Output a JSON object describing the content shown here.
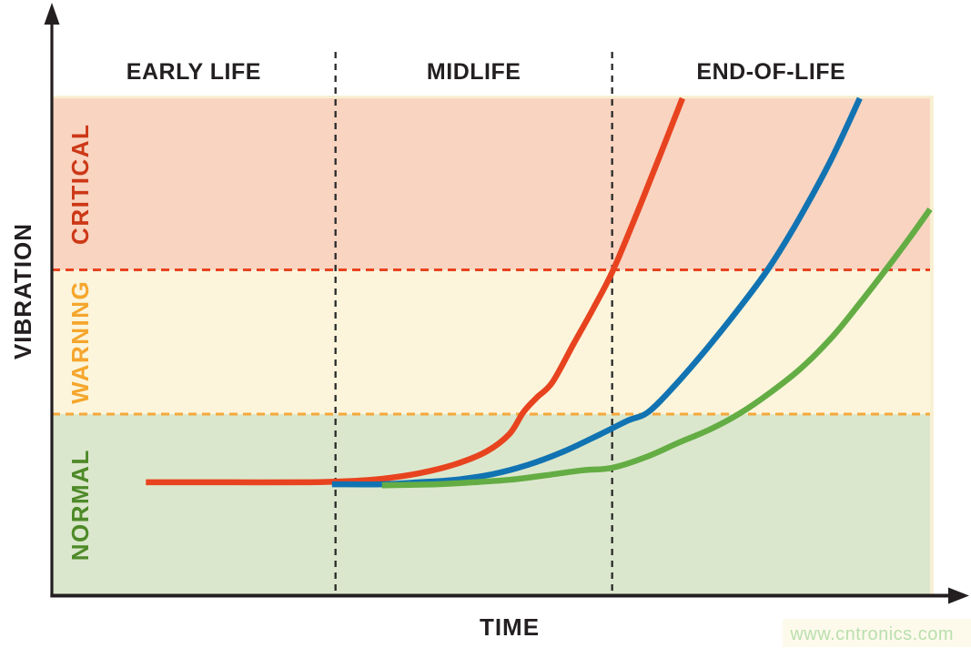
{
  "watermark": "www.cntronics.com",
  "colors": {
    "axis": "#231f20",
    "phase_boundary_line": "#2a2a2a",
    "plot_backing": "#f8f0d4",
    "watermark_strip": "#fdfaec",
    "curve_red": "#e8431f",
    "curve_blue": "#1173b2",
    "curve_green": "#64ad44"
  },
  "chart_data": {
    "type": "line",
    "title": "",
    "xlabel": "TIME",
    "ylabel": "VIBRATION",
    "x_axis": {
      "min": 0,
      "max": 100,
      "ticks": "none",
      "note": "relative machine lifetime, unlabeled axis"
    },
    "y_axis": {
      "min": 0,
      "max": 100,
      "ticks": "none",
      "note": "relative vibration amplitude, unlabeled axis"
    },
    "grid": false,
    "legend": "none",
    "phases": [
      {
        "label": "EARLY LIFE",
        "t_start": 0,
        "t_end": 32.3
      },
      {
        "label": "MIDLIFE",
        "t_start": 32.3,
        "t_end": 63.8
      },
      {
        "label": "END-OF-LIFE",
        "t_start": 63.8,
        "t_end": 100
      }
    ],
    "zones": [
      {
        "label": "NORMAL",
        "vib_min": 0,
        "vib_max": 36.5,
        "fill": "#dbe7cd",
        "text_color": "#4e8a28"
      },
      {
        "label": "WARNING",
        "vib_min": 36.5,
        "vib_max": 65.5,
        "fill": "#fcf5dc",
        "text_color": "#f5a62d"
      },
      {
        "label": "CRITICAL",
        "vib_min": 65.5,
        "vib_max": 100,
        "fill": "#f9d4c1",
        "text_color": "#cc3817"
      }
    ],
    "threshold_lines": [
      {
        "name": "warning-threshold",
        "vib": 36.5,
        "color": "#f6a83a"
      },
      {
        "name": "critical-threshold",
        "vib": 65.5,
        "color": "#e8431f"
      }
    ],
    "series": [
      {
        "name": "fast-degradation-curve",
        "color": "#e8431f",
        "points": [
          [
            10.7,
            22.8
          ],
          [
            20.0,
            22.8
          ],
          [
            29.3,
            22.8
          ],
          [
            33.5,
            23.0
          ],
          [
            37.6,
            23.5
          ],
          [
            41.8,
            24.6
          ],
          [
            45.9,
            26.4
          ],
          [
            49.5,
            29.0
          ],
          [
            52.1,
            32.5
          ],
          [
            53.7,
            36.9
          ],
          [
            55.2,
            39.8
          ],
          [
            57.0,
            42.9
          ],
          [
            59.4,
            50.6
          ],
          [
            61.7,
            57.9
          ],
          [
            63.9,
            65.4
          ],
          [
            66.6,
            76.8
          ],
          [
            69.2,
            88.3
          ],
          [
            71.8,
            100
          ]
        ]
      },
      {
        "name": "moderate-degradation-curve",
        "color": "#1173b2",
        "points": [
          [
            31.9,
            22.4
          ],
          [
            37.6,
            22.4
          ],
          [
            41.8,
            22.8
          ],
          [
            45.9,
            23.3
          ],
          [
            50.1,
            24.4
          ],
          [
            54.2,
            26.3
          ],
          [
            58.3,
            29.0
          ],
          [
            62.5,
            32.5
          ],
          [
            65.6,
            35.2
          ],
          [
            67.9,
            36.9
          ],
          [
            70.8,
            42.0
          ],
          [
            74.4,
            49.3
          ],
          [
            78.0,
            57.2
          ],
          [
            81.5,
            65.5
          ],
          [
            84.8,
            74.9
          ],
          [
            88.6,
            87.2
          ],
          [
            92.0,
            100
          ]
        ]
      },
      {
        "name": "slow-degradation-curve",
        "color": "#64ad44",
        "points": [
          [
            37.6,
            22.2
          ],
          [
            43.8,
            22.4
          ],
          [
            48.0,
            22.8
          ],
          [
            52.1,
            23.3
          ],
          [
            56.3,
            24.2
          ],
          [
            60.4,
            25.2
          ],
          [
            63.8,
            25.7
          ],
          [
            67.7,
            27.9
          ],
          [
            71.3,
            30.7
          ],
          [
            74.9,
            33.4
          ],
          [
            78.2,
            36.5
          ],
          [
            81.7,
            40.7
          ],
          [
            85.3,
            45.7
          ],
          [
            88.9,
            52.1
          ],
          [
            92.0,
            58.8
          ],
          [
            94.9,
            65.4
          ],
          [
            97.7,
            72.0
          ],
          [
            100,
            77.7
          ]
        ]
      }
    ]
  }
}
